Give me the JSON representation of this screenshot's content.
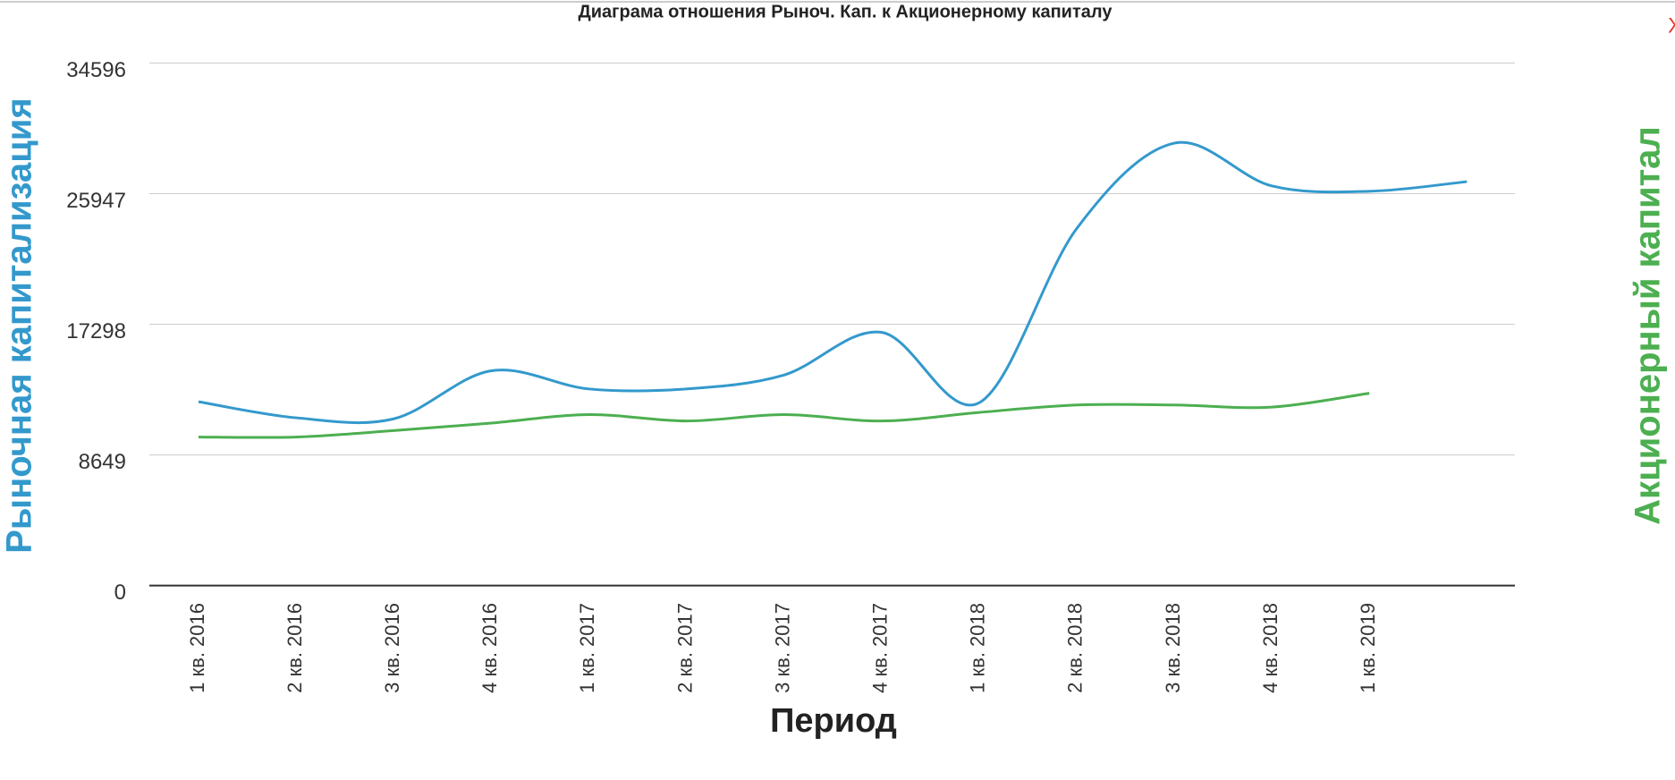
{
  "close": "X",
  "chart_data": {
    "type": "line",
    "title": "Диаграма отношения Рыноч. Кап. к Акционерному капиталу",
    "x_label": "Период",
    "y_label": "Рыночная капитализация",
    "y2_label": "Акционерный капитал",
    "categories": [
      "1 кв. 2016",
      "2 кв. 2016",
      "3 кв. 2016",
      "4 кв. 2016",
      "1 кв. 2017",
      "2 кв. 2017",
      "3 кв. 2017",
      "4 кв. 2017",
      "1 кв. 2018",
      "2 кв. 2018",
      "3 кв. 2018",
      "4 кв. 2018",
      "1 кв. 2019",
      null
    ],
    "series": [
      {
        "name": "Рыночная капитализация",
        "color": "#3399cc",
        "values": [
          12169,
          11108,
          11037,
          14221,
          13018,
          13018,
          13938,
          16768,
          12098,
          23631,
          29291,
          26461,
          26107,
          26744
        ]
      },
      {
        "name": "Акционерный капитал",
        "color": "#4caf50",
        "values": [
          9834,
          9834,
          10259,
          10754,
          11320,
          10896,
          11320,
          10896,
          11462,
          11957,
          11957,
          11815,
          12735,
          null
        ]
      }
    ],
    "ylim": [
      0,
      34596
    ],
    "yticks": [
      0,
      8649,
      17298,
      25947,
      34596
    ],
    "grid": true
  }
}
